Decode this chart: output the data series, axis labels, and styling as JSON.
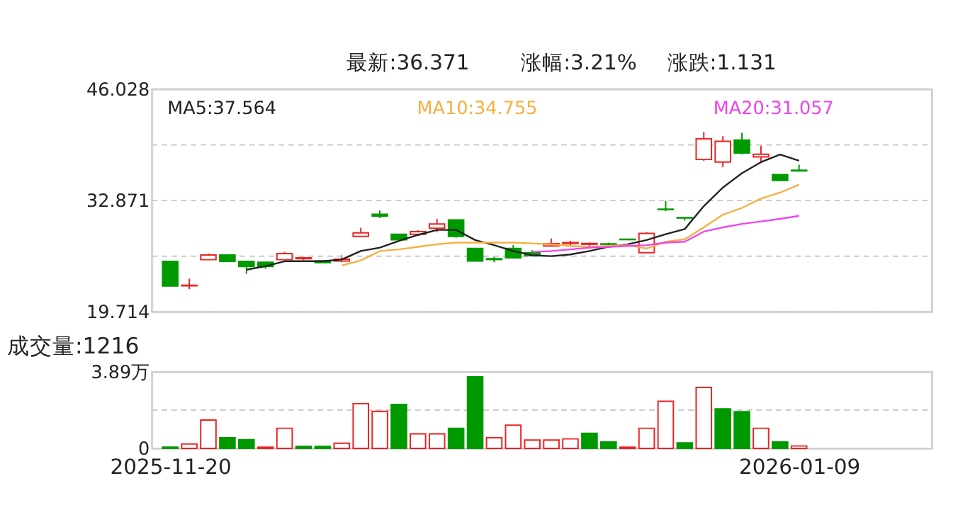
{
  "chart_data": [
    {
      "type": "candlestick",
      "annotations": [
        "最新:36.371",
        "涨幅:3.21%",
        "涨跌:1.131"
      ],
      "categories": [
        "2025-11-20",
        null,
        null,
        null,
        null,
        null,
        null,
        null,
        null,
        null,
        null,
        null,
        null,
        null,
        null,
        null,
        null,
        null,
        null,
        null,
        null,
        null,
        null,
        null,
        null,
        null,
        null,
        null,
        null,
        null,
        null,
        null,
        null,
        "2026-01-09"
      ],
      "ohlc": [
        [
          25.68,
          25.68,
          22.77,
          22.77
        ],
        [
          22.8,
          23.64,
          22.41,
          22.87
        ],
        [
          25.88,
          26.6,
          25.88,
          26.44
        ],
        [
          26.44,
          26.44,
          25.68,
          25.68
        ],
        [
          25.68,
          25.68,
          24.2,
          25.07
        ],
        [
          25.57,
          25.57,
          24.8,
          25.07
        ],
        [
          25.88,
          26.8,
          25.88,
          26.6
        ],
        [
          26.0,
          26.24,
          25.83,
          26.1
        ],
        [
          25.73,
          25.73,
          25.53,
          25.53
        ],
        [
          25.73,
          26.4,
          25.58,
          25.93
        ],
        [
          28.64,
          29.66,
          28.64,
          29.05
        ],
        [
          31.24,
          31.7,
          30.78,
          31.04
        ],
        [
          28.89,
          28.89,
          28.23,
          28.23
        ],
        [
          28.89,
          29.35,
          28.89,
          29.2
        ],
        [
          29.6,
          30.68,
          29.15,
          30.1
        ],
        [
          30.57,
          30.57,
          28.48,
          28.64
        ],
        [
          27.21,
          27.21,
          25.73,
          25.73
        ],
        [
          26.0,
          26.24,
          25.58,
          25.9
        ],
        [
          27.21,
          27.6,
          26.09,
          26.09
        ],
        [
          26.7,
          27.0,
          26.34,
          26.34
        ],
        [
          27.5,
          28.38,
          27.5,
          27.77
        ],
        [
          27.8,
          28.1,
          27.5,
          27.9
        ],
        [
          27.7,
          27.9,
          27.2,
          27.8
        ],
        [
          27.75,
          27.9,
          27.5,
          27.7
        ],
        [
          28.3,
          28.35,
          28.2,
          28.25
        ],
        [
          26.7,
          29.15,
          26.7,
          28.99
        ],
        [
          31.85,
          32.82,
          31.6,
          31.8
        ],
        [
          30.85,
          30.85,
          30.5,
          30.8
        ],
        [
          37.72,
          40.98,
          37.56,
          40.16
        ],
        [
          37.41,
          40.47,
          36.8,
          39.86
        ],
        [
          40.01,
          40.88,
          38.33,
          38.48
        ],
        [
          38.02,
          39.35,
          37.41,
          38.33
        ],
        [
          35.93,
          35.93,
          35.17,
          35.24
        ],
        [
          36.45,
          37.1,
          36.3,
          36.37
        ]
      ],
      "colors": [
        "#009900",
        "#ee2222",
        "#ee2222",
        "#009900",
        "#009900",
        "#009900",
        "#ee2222",
        "#ee2222",
        "#009900",
        "#ee2222",
        "#ee2222",
        "#009900",
        "#009900",
        "#ee2222",
        "#ee2222",
        "#009900",
        "#009900",
        "#009900",
        "#009900",
        "#009900",
        "#ee2222",
        "#ee2222",
        "#ee2222",
        "#009900",
        "#009900",
        "#ee2222",
        "#009900",
        "#009900",
        "#ee2222",
        "#ee2222",
        "#009900",
        "#ee2222",
        "#009900",
        "#009900"
      ],
      "series": [
        {
          "name": "MA5:37.564",
          "type": "line",
          "color": "#222222",
          "values": [
            null,
            null,
            null,
            null,
            24.7,
            25.1,
            25.7,
            25.7,
            25.7,
            25.9,
            26.9,
            27.3,
            28.1,
            28.8,
            29.4,
            29.4,
            28.2,
            27.6,
            26.9,
            26.4,
            26.3,
            26.5,
            26.9,
            27.4,
            27.7,
            28.2,
            28.9,
            29.5,
            32.2,
            34.4,
            36.1,
            37.4,
            38.3,
            37.564
          ]
        },
        {
          "name": "MA10:34.755",
          "type": "line",
          "color": "#f5b041",
          "values": [
            null,
            null,
            null,
            null,
            null,
            null,
            null,
            null,
            null,
            25.2,
            25.8,
            26.9,
            27.1,
            27.4,
            27.7,
            27.9,
            27.9,
            27.9,
            27.9,
            27.8,
            27.7,
            27.5,
            27.4,
            27.5,
            27.6,
            27.2,
            28.0,
            28.3,
            29.7,
            31.2,
            32.0,
            33.1,
            33.8,
            34.755
          ]
        },
        {
          "name": "MA20:31.057",
          "type": "line",
          "color": "#ee44ee",
          "values": [
            null,
            null,
            null,
            null,
            null,
            null,
            null,
            null,
            null,
            null,
            null,
            null,
            null,
            null,
            null,
            null,
            null,
            null,
            null,
            26.8,
            26.9,
            27.1,
            27.3,
            27.4,
            27.5,
            27.6,
            27.9,
            28.0,
            29.2,
            29.7,
            30.1,
            30.4,
            30.7,
            31.057
          ]
        }
      ],
      "ylim": [
        19.714,
        46.028
      ],
      "yticks": [
        19.714,
        {
          "value": 26.2925,
          "label": null
        },
        32.871,
        {
          "value": 39.4495,
          "label": null
        },
        46.028
      ],
      "grid": "y",
      "tick_labels": "y"
    },
    {
      "type": "bar",
      "title": "成交量:1216",
      "categories": [
        "2025-11-20",
        null,
        null,
        null,
        null,
        null,
        null,
        null,
        null,
        null,
        null,
        null,
        null,
        null,
        null,
        null,
        null,
        null,
        null,
        null,
        null,
        null,
        null,
        null,
        null,
        null,
        null,
        null,
        null,
        null,
        null,
        null,
        null,
        "2026-01-09"
      ],
      "values": [
        0.06,
        0.22,
        1.44,
        0.54,
        0.44,
        0.06,
        1.02,
        0.1,
        0.1,
        0.26,
        2.27,
        1.88,
        2.23,
        0.74,
        0.74,
        1.02,
        3.63,
        0.54,
        1.18,
        0.42,
        0.42,
        0.48,
        0.76,
        0.32,
        0.06,
        1.02,
        2.39,
        0.28,
        3.09,
        2.01,
        1.86,
        1.02,
        0.32,
        0.12
      ],
      "colors": [
        "#009900",
        "#ee2222",
        "#ee2222",
        "#009900",
        "#009900",
        "#ee2222",
        "#ee2222",
        "#009900",
        "#009900",
        "#ee2222",
        "#ee2222",
        "#ee2222",
        "#009900",
        "#ee2222",
        "#ee2222",
        "#009900",
        "#009900",
        "#ee2222",
        "#ee2222",
        "#ee2222",
        "#ee2222",
        "#ee2222",
        "#009900",
        "#009900",
        "#ee2222",
        "#ee2222",
        "#ee2222",
        "#009900",
        "#ee2222",
        "#009900",
        "#009900",
        "#ee2222",
        "#009900",
        "#ee2222"
      ],
      "ylim": [
        0,
        3.89
      ],
      "yticks": [
        0,
        {
          "value": 1.945,
          "label": null
        },
        {
          "value": 3.89,
          "label": "3.89万"
        }
      ],
      "grid": "y"
    }
  ]
}
